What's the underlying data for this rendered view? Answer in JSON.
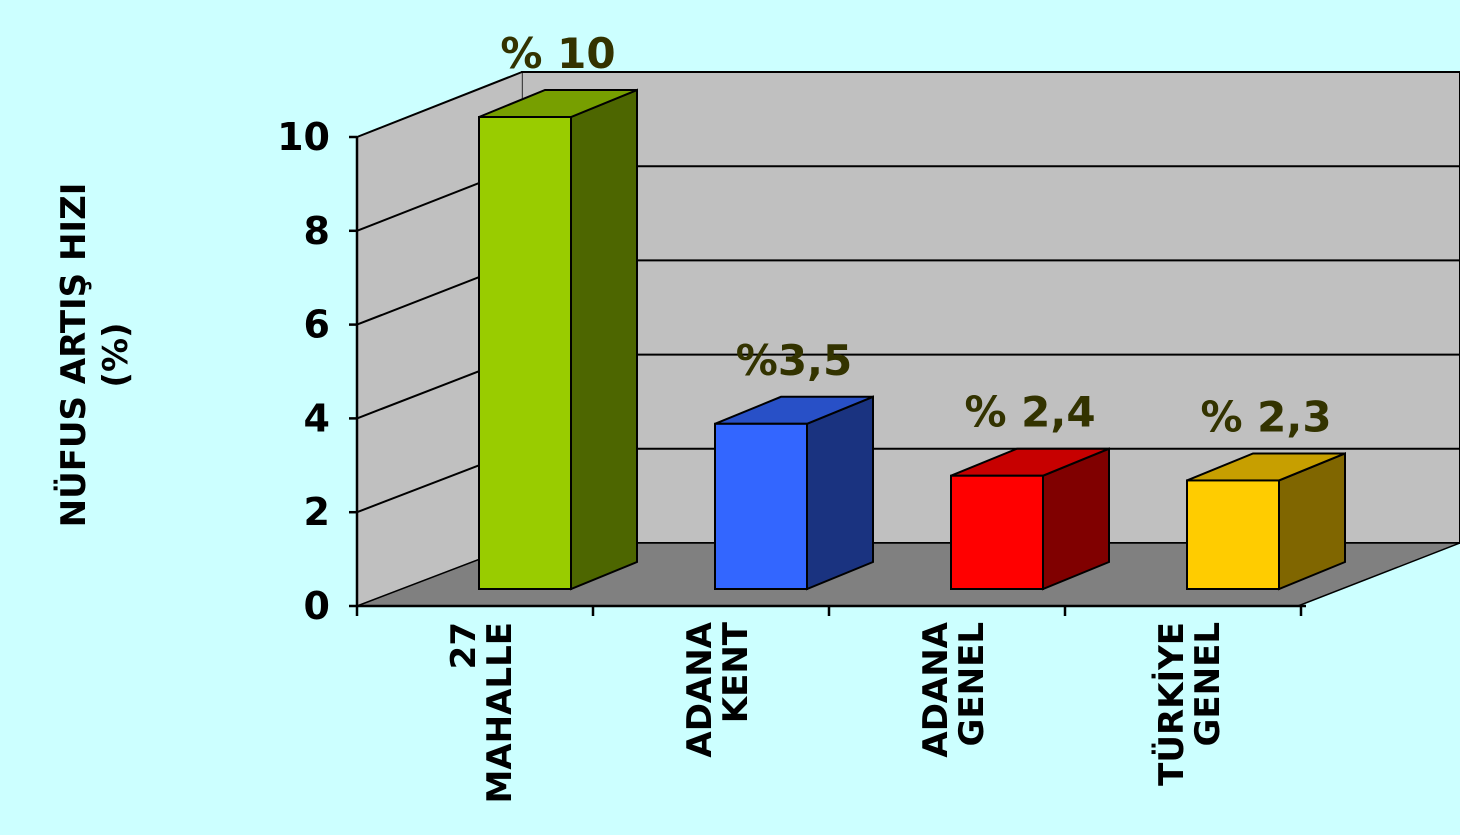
{
  "chart_data": {
    "type": "bar",
    "style": "3d",
    "categories": [
      [
        "27",
        "MAHALLE"
      ],
      [
        "ADANA",
        "KENT"
      ],
      [
        "ADANA",
        "GENEL"
      ],
      [
        "TÜRKİYE",
        "GENEL"
      ]
    ],
    "values": [
      10,
      3.5,
      2.4,
      2.3
    ],
    "data_labels": [
      "% 10",
      "%3,5",
      "% 2,4",
      "% 2,3"
    ],
    "bar_colors": [
      "#99cc00",
      "#3366ff",
      "#ff0000",
      "#ffcc00"
    ],
    "ylabel": [
      "NÜFUS ARTIŞ HIZI",
      "(%)"
    ],
    "ylim": [
      0,
      10
    ],
    "yticks": [
      0,
      2,
      4,
      6,
      8,
      10
    ],
    "grid": true,
    "colors": {
      "background": "#ccffff",
      "wall": "#c0c0c0",
      "floor": "#808080",
      "data_label": "#333300"
    }
  }
}
